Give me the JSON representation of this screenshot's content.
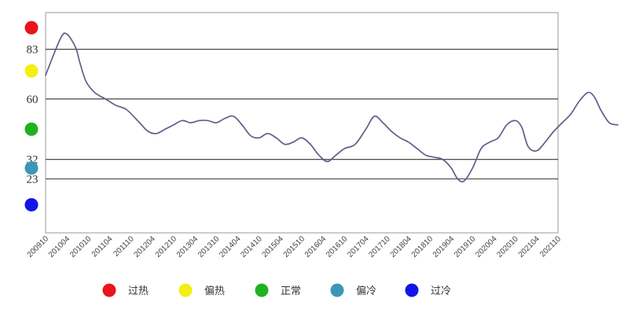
{
  "chart_data": {
    "type": "line",
    "title": "",
    "xlabel": "",
    "ylabel": "",
    "x_tick_labels": [
      "200910",
      "201004",
      "201010",
      "201104",
      "201110",
      "201204",
      "201210",
      "201304",
      "201310",
      "201404",
      "201410",
      "201504",
      "201510",
      "201604",
      "201610",
      "201704",
      "201710",
      "201804",
      "201810",
      "201904",
      "201910",
      "202004",
      "202010",
      "202104",
      "202110"
    ],
    "y_tick_labels": [
      "83",
      "60",
      "32",
      "23"
    ],
    "thresholds": [
      83,
      60,
      32,
      23
    ],
    "ylim": [
      -2,
      100
    ],
    "grid": false,
    "legend_position": "bottom",
    "status_levels": [
      {
        "label": "过热",
        "color": "#e8151b",
        "level": 93
      },
      {
        "label": "偏热",
        "color": "#f3ef11",
        "level": 73
      },
      {
        "label": "正常",
        "color": "#1fb21f",
        "level": 46
      },
      {
        "label": "偏冷",
        "color": "#3b96b8",
        "level": 28
      },
      {
        "label": "过冷",
        "color": "#1414e8",
        "level": 11
      }
    ],
    "series": [
      {
        "color": "#5c5f88",
        "points": [
          [
            0,
            71
          ],
          [
            0.7,
            88
          ],
          [
            1.0,
            90
          ],
          [
            1.4,
            84
          ],
          [
            1.6,
            77
          ],
          [
            1.9,
            68
          ],
          [
            2.3,
            63
          ],
          [
            2.8,
            60
          ],
          [
            3.3,
            57
          ],
          [
            3.8,
            55
          ],
          [
            4.4,
            49
          ],
          [
            4.8,
            45
          ],
          [
            5.2,
            44
          ],
          [
            5.6,
            46
          ],
          [
            6.0,
            48
          ],
          [
            6.4,
            50
          ],
          [
            6.8,
            49
          ],
          [
            7.2,
            50
          ],
          [
            7.6,
            50
          ],
          [
            8.0,
            49
          ],
          [
            8.4,
            51
          ],
          [
            8.8,
            52
          ],
          [
            9.2,
            48
          ],
          [
            9.6,
            43
          ],
          [
            10.0,
            42
          ],
          [
            10.4,
            44
          ],
          [
            10.8,
            42
          ],
          [
            11.2,
            39
          ],
          [
            11.6,
            40
          ],
          [
            12.0,
            42
          ],
          [
            12.4,
            39
          ],
          [
            12.8,
            34
          ],
          [
            13.2,
            31
          ],
          [
            13.6,
            34
          ],
          [
            14.0,
            37
          ],
          [
            14.5,
            39
          ],
          [
            15.0,
            46
          ],
          [
            15.4,
            52
          ],
          [
            15.8,
            49
          ],
          [
            16.2,
            45
          ],
          [
            16.6,
            42
          ],
          [
            17.0,
            40
          ],
          [
            17.4,
            37
          ],
          [
            17.8,
            34
          ],
          [
            18.2,
            33
          ],
          [
            18.6,
            32
          ],
          [
            19.0,
            28
          ],
          [
            19.3,
            23
          ],
          [
            19.6,
            22
          ],
          [
            20.0,
            28
          ],
          [
            20.4,
            37
          ],
          [
            20.8,
            40
          ],
          [
            21.2,
            42
          ],
          [
            21.6,
            48
          ],
          [
            22.0,
            50
          ],
          [
            22.3,
            47
          ],
          [
            22.6,
            38
          ],
          [
            23.0,
            36
          ],
          [
            23.4,
            40
          ],
          [
            23.8,
            45
          ],
          [
            24.2,
            49
          ],
          [
            24.6,
            53
          ],
          [
            25.0,
            59
          ],
          [
            25.4,
            63
          ],
          [
            25.7,
            61
          ],
          [
            26.0,
            55
          ],
          [
            26.4,
            49
          ],
          [
            26.8,
            48
          ]
        ]
      }
    ]
  }
}
